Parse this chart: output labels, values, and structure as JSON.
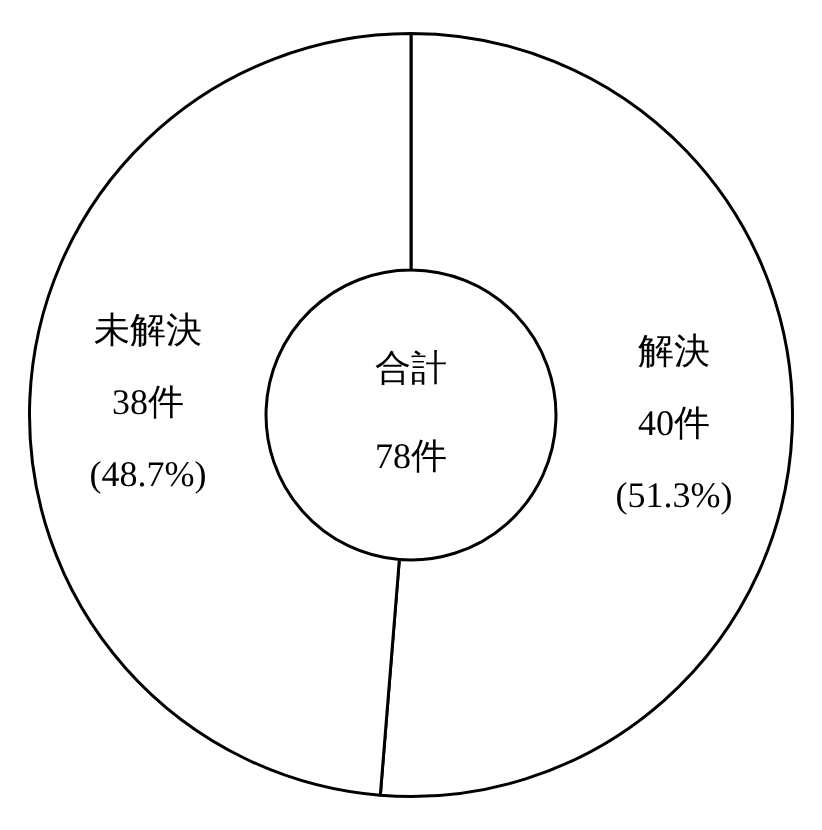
{
  "chart_data": {
    "type": "donut",
    "title": "合計",
    "subtitle": "78件",
    "categories": [
      "解決",
      "未解決"
    ],
    "values": [
      40,
      38
    ],
    "colors": [
      "#ffffff",
      "#ffffff"
    ],
    "value_labels": [
      "40件",
      "38件"
    ],
    "annotations": [
      "(51.3%)",
      "(48.7%)"
    ],
    "legend": false
  }
}
